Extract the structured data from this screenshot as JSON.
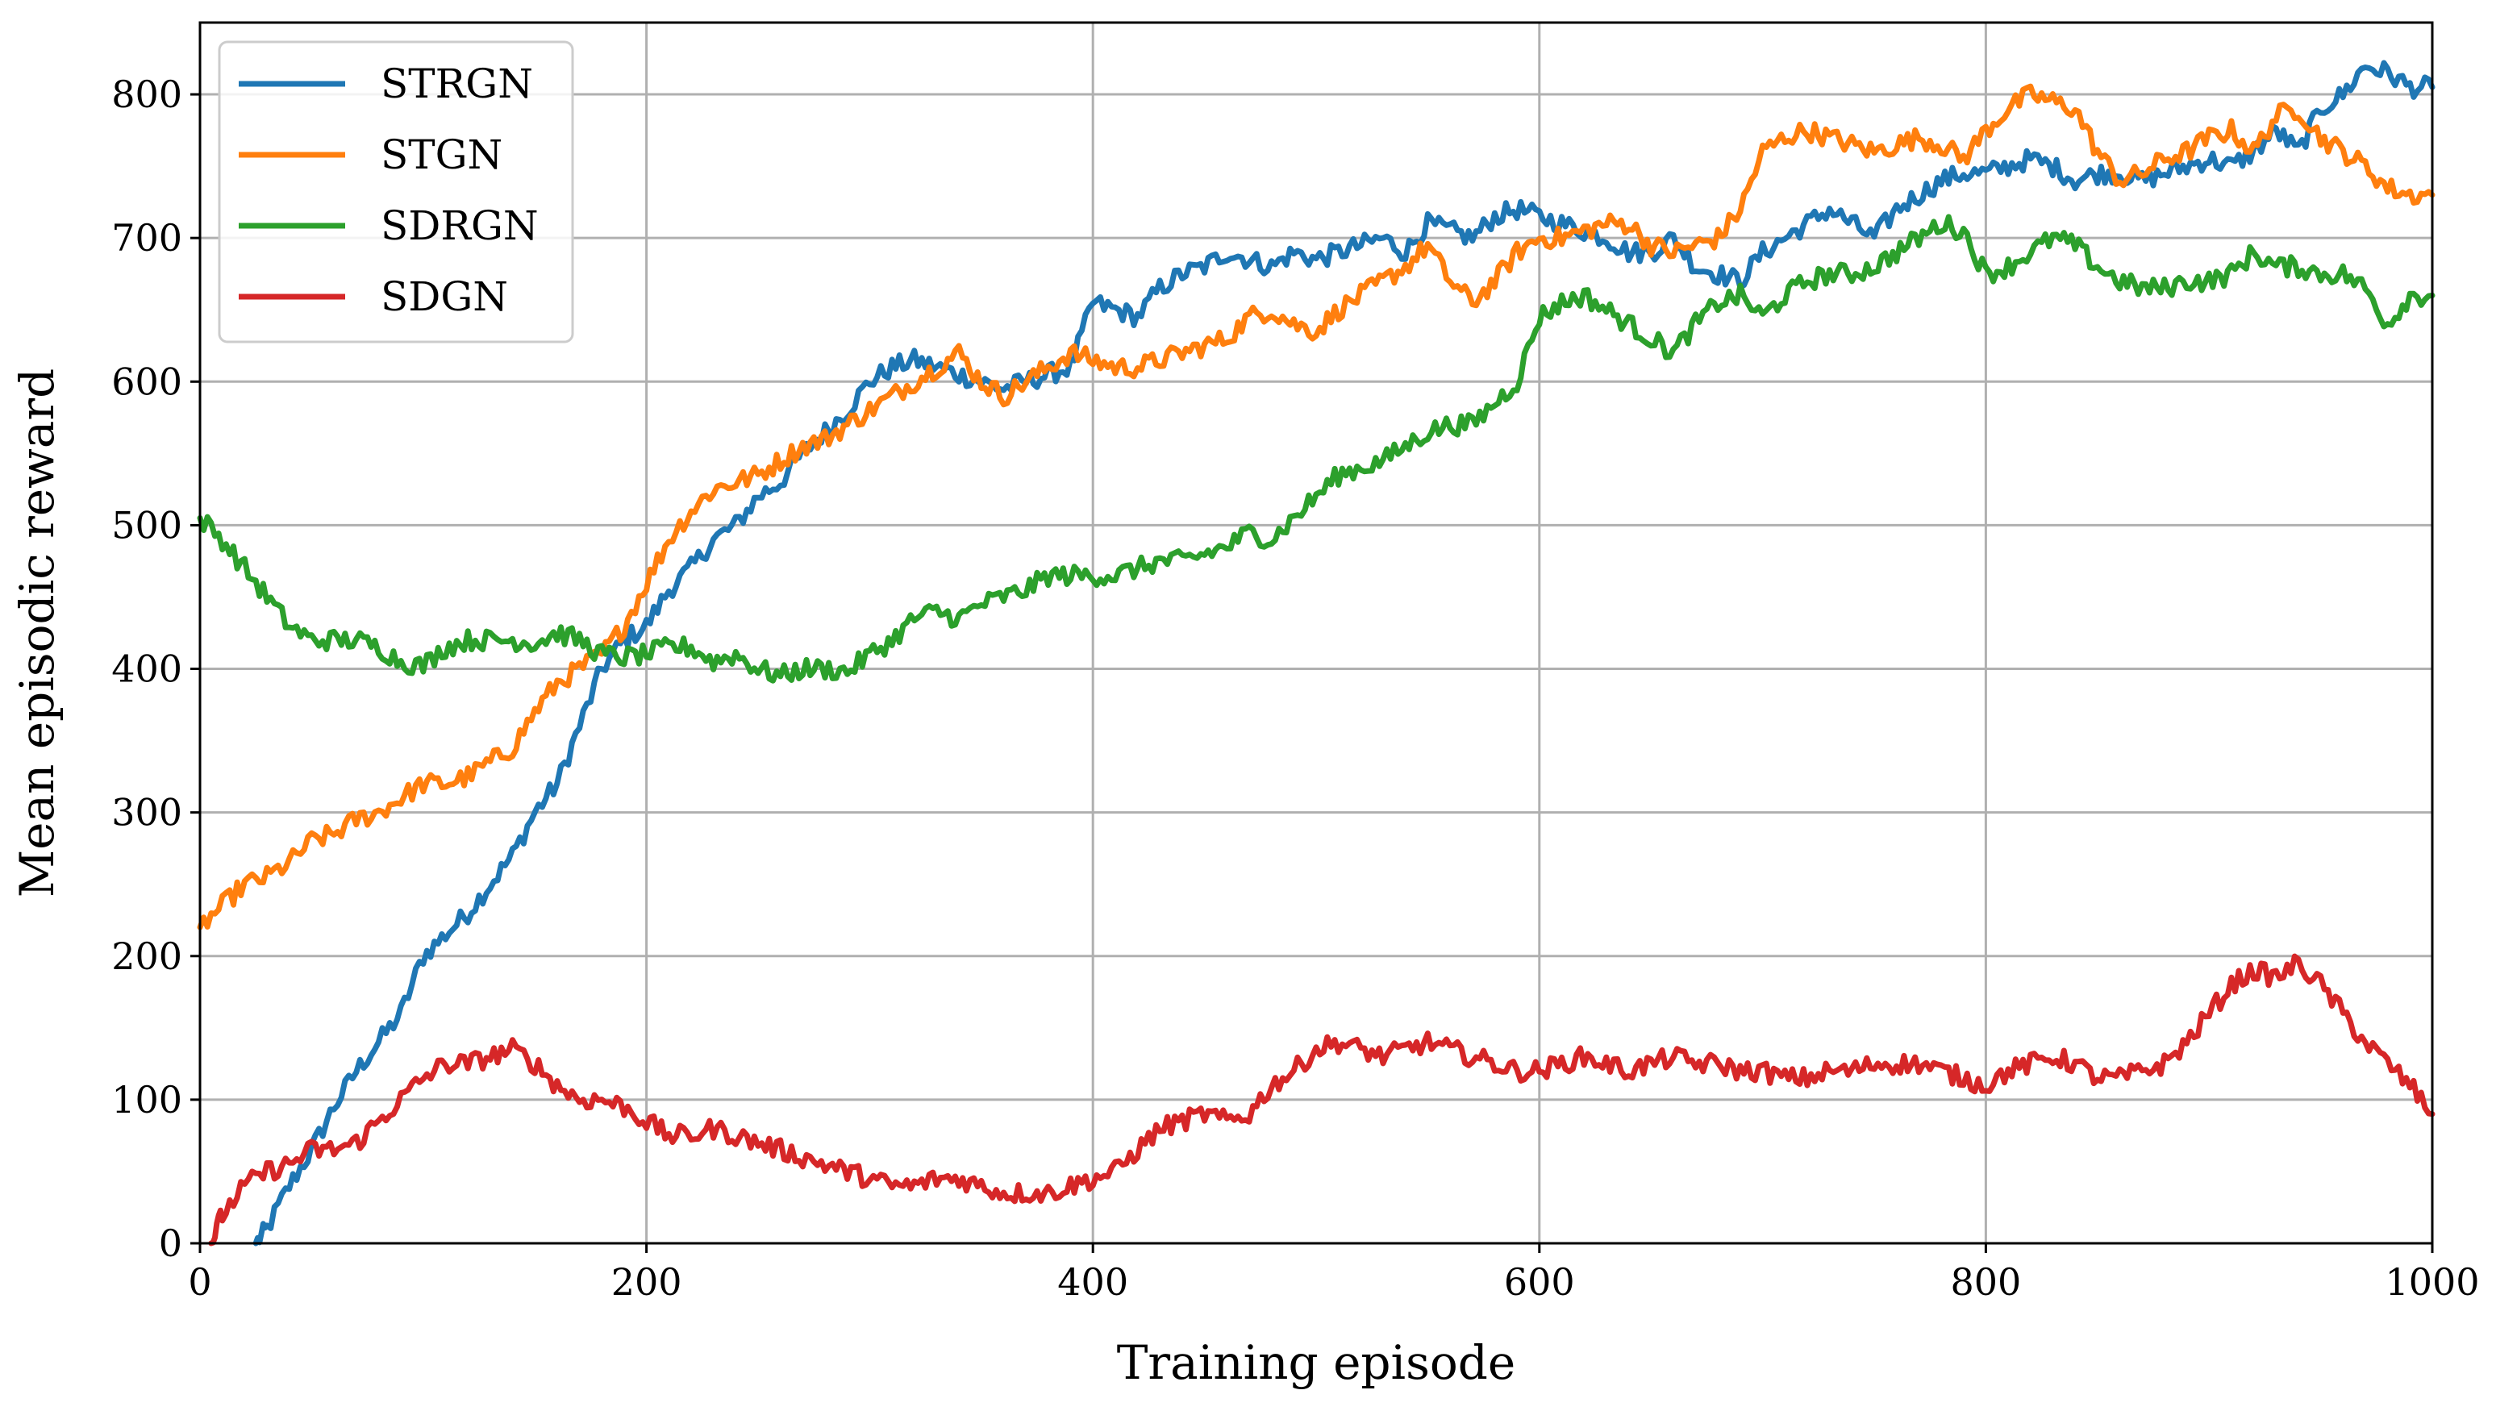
{
  "chart_data": {
    "type": "line",
    "title": "",
    "xlabel": "Training episode",
    "ylabel": "Mean episodic reward",
    "xlim": [
      0,
      1000
    ],
    "ylim": [
      0,
      850
    ],
    "xticks": [
      0,
      200,
      400,
      600,
      800,
      1000
    ],
    "yticks": [
      0,
      100,
      200,
      300,
      400,
      500,
      600,
      700,
      800
    ],
    "grid": true,
    "legend": "top-left",
    "series": [
      {
        "name": "STRGN",
        "color": "#1f77b4",
        "x": [
          25,
          30,
          40,
          50,
          60,
          70,
          80,
          90,
          100,
          110,
          120,
          130,
          140,
          150,
          160,
          170,
          180,
          190,
          200,
          210,
          220,
          230,
          240,
          250,
          260,
          270,
          280,
          290,
          300,
          310,
          320,
          330,
          340,
          350,
          360,
          370,
          380,
          390,
          400,
          410,
          420,
          430,
          440,
          450,
          460,
          470,
          480,
          490,
          500,
          510,
          520,
          530,
          540,
          550,
          560,
          570,
          580,
          590,
          600,
          610,
          620,
          630,
          640,
          650,
          660,
          670,
          680,
          690,
          700,
          710,
          720,
          730,
          740,
          750,
          760,
          770,
          780,
          790,
          800,
          810,
          820,
          830,
          840,
          850,
          860,
          870,
          880,
          890,
          900,
          910,
          920,
          930,
          940,
          950,
          960,
          970,
          980,
          990,
          1000
        ],
        "y": [
          0,
          10,
          40,
          65,
          95,
          120,
          140,
          160,
          200,
          215,
          230,
          250,
          270,
          300,
          320,
          360,
          400,
          420,
          430,
          455,
          470,
          490,
          500,
          520,
          530,
          550,
          565,
          580,
          600,
          610,
          615,
          610,
          605,
          600,
          595,
          600,
          605,
          610,
          655,
          650,
          645,
          665,
          675,
          680,
          690,
          685,
          680,
          690,
          685,
          690,
          695,
          700,
          690,
          710,
          705,
          700,
          715,
          720,
          715,
          710,
          705,
          700,
          690,
          690,
          700,
          680,
          675,
          670,
          690,
          700,
          710,
          720,
          710,
          700,
          720,
          730,
          740,
          745,
          745,
          750,
          755,
          750,
          740,
          745,
          745,
          740,
          745,
          750,
          755,
          750,
          760,
          775,
          760,
          790,
          800,
          820,
          815,
          805,
          805
        ]
      },
      {
        "name": "STGN",
        "color": "#ff7f0e",
        "x": [
          0,
          10,
          20,
          30,
          40,
          50,
          60,
          70,
          80,
          90,
          100,
          110,
          120,
          130,
          140,
          150,
          160,
          170,
          180,
          190,
          200,
          210,
          220,
          230,
          240,
          250,
          260,
          270,
          280,
          290,
          300,
          310,
          320,
          330,
          340,
          350,
          360,
          370,
          380,
          390,
          400,
          410,
          420,
          430,
          440,
          450,
          460,
          470,
          480,
          490,
          500,
          510,
          520,
          530,
          540,
          550,
          560,
          570,
          580,
          590,
          600,
          610,
          620,
          630,
          640,
          650,
          660,
          670,
          680,
          690,
          700,
          710,
          720,
          730,
          740,
          750,
          760,
          770,
          780,
          790,
          800,
          810,
          820,
          830,
          840,
          850,
          860,
          870,
          880,
          890,
          900,
          910,
          920,
          930,
          940,
          950,
          960,
          970,
          980,
          990,
          1000
        ],
        "y": [
          220,
          235,
          250,
          255,
          265,
          280,
          285,
          295,
          300,
          310,
          320,
          320,
          325,
          335,
          345,
          370,
          390,
          400,
          410,
          430,
          460,
          490,
          510,
          525,
          530,
          535,
          545,
          555,
          560,
          570,
          580,
          590,
          600,
          610,
          620,
          600,
          590,
          600,
          610,
          620,
          615,
          610,
          610,
          615,
          620,
          625,
          630,
          645,
          650,
          640,
          635,
          650,
          660,
          670,
          680,
          695,
          670,
          655,
          670,
          690,
          700,
          700,
          705,
          710,
          710,
          695,
          690,
          695,
          700,
          720,
          760,
          770,
          775,
          770,
          765,
          760,
          765,
          770,
          765,
          755,
          775,
          790,
          800,
          795,
          790,
          760,
          740,
          745,
          755,
          760,
          770,
          775,
          760,
          785,
          790,
          770,
          760,
          750,
          735,
          730,
          730
        ]
      },
      {
        "name": "SDRGN",
        "color": "#2ca02c",
        "x": [
          0,
          10,
          20,
          30,
          40,
          50,
          60,
          70,
          80,
          90,
          100,
          110,
          120,
          130,
          140,
          150,
          160,
          170,
          180,
          190,
          200,
          210,
          220,
          230,
          240,
          250,
          260,
          270,
          280,
          290,
          300,
          310,
          320,
          330,
          340,
          350,
          360,
          370,
          380,
          390,
          400,
          410,
          420,
          430,
          440,
          450,
          460,
          470,
          480,
          490,
          500,
          510,
          520,
          530,
          540,
          550,
          560,
          570,
          580,
          590,
          600,
          610,
          620,
          630,
          640,
          650,
          660,
          670,
          680,
          690,
          700,
          710,
          720,
          730,
          740,
          750,
          760,
          770,
          780,
          790,
          800,
          810,
          820,
          830,
          840,
          850,
          860,
          870,
          880,
          890,
          900,
          910,
          920,
          930,
          940,
          950,
          960,
          970,
          980,
          990,
          1000
        ],
        "y": [
          505,
          490,
          470,
          450,
          430,
          420,
          420,
          420,
          415,
          405,
          402,
          415,
          420,
          420,
          420,
          418,
          425,
          420,
          410,
          408,
          410,
          415,
          415,
          405,
          410,
          400,
          395,
          400,
          400,
          398,
          410,
          420,
          435,
          440,
          435,
          445,
          450,
          455,
          465,
          465,
          465,
          465,
          470,
          475,
          475,
          480,
          485,
          495,
          490,
          505,
          520,
          535,
          540,
          545,
          555,
          565,
          570,
          570,
          585,
          600,
          645,
          655,
          660,
          650,
          640,
          630,
          620,
          640,
          655,
          660,
          645,
          660,
          670,
          675,
          675,
          680,
          690,
          700,
          710,
          705,
          675,
          680,
          690,
          700,
          695,
          680,
          670,
          665,
          665,
          670,
          670,
          675,
          690,
          680,
          680,
          675,
          675,
          665,
          640,
          660,
          660
        ]
      },
      {
        "name": "SDGN",
        "color": "#d62728",
        "x": [
          5,
          10,
          20,
          30,
          40,
          50,
          60,
          70,
          80,
          90,
          100,
          110,
          120,
          130,
          140,
          150,
          160,
          170,
          180,
          190,
          200,
          210,
          220,
          230,
          240,
          250,
          260,
          270,
          280,
          290,
          300,
          310,
          320,
          330,
          340,
          350,
          360,
          370,
          380,
          390,
          400,
          410,
          420,
          430,
          440,
          450,
          460,
          470,
          480,
          490,
          500,
          510,
          520,
          530,
          540,
          550,
          560,
          570,
          580,
          590,
          600,
          610,
          620,
          630,
          640,
          650,
          660,
          670,
          680,
          690,
          700,
          710,
          720,
          730,
          740,
          750,
          760,
          770,
          780,
          790,
          800,
          810,
          820,
          830,
          840,
          850,
          860,
          870,
          880,
          890,
          900,
          910,
          920,
          930,
          940,
          950,
          960,
          970,
          980,
          990,
          1000
        ],
        "y": [
          0,
          20,
          40,
          50,
          55,
          65,
          65,
          70,
          85,
          100,
          115,
          125,
          125,
          130,
          135,
          125,
          110,
          100,
          100,
          95,
          85,
          75,
          75,
          80,
          75,
          70,
          65,
          60,
          55,
          50,
          45,
          40,
          40,
          45,
          45,
          40,
          35,
          35,
          35,
          40,
          45,
          50,
          65,
          80,
          85,
          90,
          85,
          90,
          110,
          120,
          135,
          140,
          135,
          130,
          135,
          140,
          135,
          130,
          125,
          120,
          120,
          125,
          130,
          125,
          120,
          125,
          130,
          125,
          125,
          120,
          120,
          115,
          115,
          120,
          120,
          125,
          125,
          125,
          120,
          115,
          110,
          120,
          125,
          130,
          125,
          115,
          115,
          120,
          125,
          140,
          160,
          180,
          190,
          185,
          195,
          180,
          160,
          140,
          125,
          110,
          90
        ]
      }
    ]
  }
}
